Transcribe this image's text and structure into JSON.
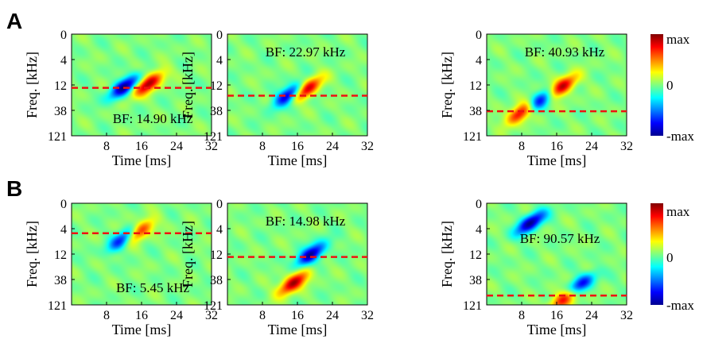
{
  "panel_labels": [
    "A",
    "B"
  ],
  "colorbar": {
    "labels": [
      "max",
      "0",
      "-max"
    ],
    "colormap": "jet"
  },
  "chart_data": [
    {
      "type": "heatmap",
      "panel": "A",
      "title": "",
      "xlabel": "Time [ms]",
      "ylabel": "Freq. [kHz]",
      "xticks": [
        "8",
        "16",
        "24",
        "32"
      ],
      "yticks": [
        "0",
        "4",
        "12",
        "38",
        "121"
      ],
      "annotation": "BF: 14.90 kHz",
      "annotation_position": "bottom",
      "bf_khz": 14.9,
      "blobs": [
        {
          "t": 12,
          "f": 13.5,
          "sign": -1
        },
        {
          "t": 17.5,
          "f": 11.5,
          "sign": 1
        }
      ]
    },
    {
      "type": "heatmap",
      "panel": "A",
      "title": "",
      "xlabel": "Time [ms]",
      "ylabel": "Freq. [kHz]",
      "xticks": [
        "8",
        "16",
        "24",
        "32"
      ],
      "yticks": [
        "0",
        "4",
        "12",
        "38",
        "121"
      ],
      "annotation": "BF: 22.97 kHz",
      "annotation_position": "top",
      "bf_khz": 22.97,
      "blobs": [
        {
          "t": 14,
          "f": 22,
          "sign": -1
        },
        {
          "t": 18,
          "f": 16,
          "sign": 1
        }
      ]
    },
    {
      "type": "heatmap",
      "panel": "A",
      "title": "",
      "xlabel": "Time [ms]",
      "ylabel": "Freq. [kHz]",
      "xticks": [
        "8",
        "16",
        "24",
        "32"
      ],
      "yticks": [
        "0",
        "4",
        "12",
        "38",
        "121"
      ],
      "annotation": "BF: 40.93 kHz",
      "annotation_position": "top",
      "bf_khz": 40.93,
      "blobs": [
        {
          "t": 8,
          "f": 42,
          "sign": 1
        },
        {
          "t": 12,
          "f": 28,
          "sign": -1
        },
        {
          "t": 17,
          "f": 14,
          "sign": 1
        }
      ]
    },
    {
      "type": "heatmap",
      "panel": "B",
      "title": "",
      "xlabel": "Time [ms]",
      "ylabel": "Freq. [kHz]",
      "xticks": [
        "8",
        "16",
        "24",
        "32"
      ],
      "yticks": [
        "0",
        "4",
        "12",
        "38",
        "121"
      ],
      "annotation": "BF: 5.45 kHz",
      "annotation_position": "bottom",
      "bf_khz": 5.45,
      "blobs": [
        {
          "t": 15,
          "f": 5,
          "sign": 1
        },
        {
          "t": 12,
          "f": 7,
          "sign": -1
        }
      ]
    },
    {
      "type": "heatmap",
      "panel": "B",
      "title": "",
      "xlabel": "Time [ms]",
      "ylabel": "Freq. [kHz]",
      "xticks": [
        "8",
        "16",
        "24",
        "32"
      ],
      "yticks": [
        "0",
        "4",
        "12",
        "38",
        "121"
      ],
      "annotation": "BF: 14.98 kHz",
      "annotation_position": "top",
      "bf_khz": 14.98,
      "blobs": [
        {
          "t": 15,
          "f": 48,
          "sign": 1
        },
        {
          "t": 19,
          "f": 12,
          "sign": -1
        }
      ]
    },
    {
      "type": "heatmap",
      "panel": "B",
      "title": "",
      "xlabel": "Time [ms]",
      "ylabel": "Freq. [kHz]",
      "xticks": [
        "8",
        "16",
        "24",
        "32"
      ],
      "yticks": [
        "0",
        "4",
        "12",
        "38",
        "121"
      ],
      "annotation": "BF: 90.57 kHz",
      "annotation_position": "middle",
      "bf_khz": 90.57,
      "blobs": [
        {
          "t": 18,
          "f": 95,
          "sign": 1
        },
        {
          "t": 21,
          "f": 58,
          "sign": -1
        },
        {
          "t": 10,
          "f": 3,
          "sign": -1
        }
      ]
    }
  ]
}
